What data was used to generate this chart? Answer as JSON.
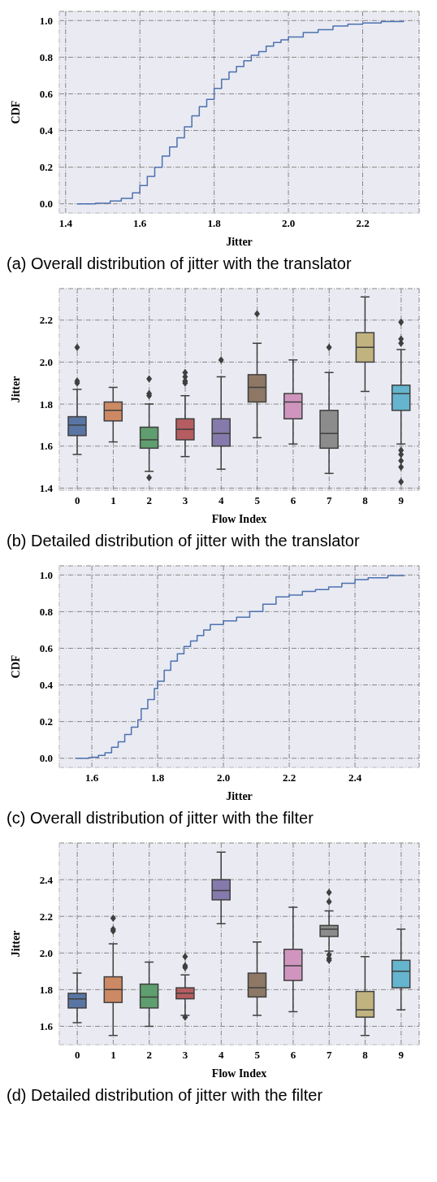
{
  "chart_data": [
    {
      "type": "step",
      "xlabel": "Jitter",
      "ylabel": "CDF",
      "annotations": [
        "(a) Overall distribution of jitter with the translator"
      ],
      "color": "#4c72b0",
      "grid": true,
      "x": [
        1.43,
        1.48,
        1.52,
        1.55,
        1.58,
        1.6,
        1.62,
        1.64,
        1.66,
        1.68,
        1.7,
        1.72,
        1.74,
        1.76,
        1.78,
        1.8,
        1.82,
        1.84,
        1.86,
        1.88,
        1.9,
        1.92,
        1.94,
        1.96,
        1.98,
        2.0,
        2.04,
        2.08,
        2.12,
        2.16,
        2.2,
        2.25,
        2.31
      ],
      "values": [
        0,
        0.003,
        0.015,
        0.03,
        0.06,
        0.1,
        0.15,
        0.2,
        0.26,
        0.31,
        0.36,
        0.42,
        0.48,
        0.53,
        0.57,
        0.63,
        0.68,
        0.72,
        0.75,
        0.78,
        0.81,
        0.83,
        0.86,
        0.88,
        0.895,
        0.91,
        0.935,
        0.95,
        0.97,
        0.98,
        0.987,
        0.995,
        1.0
      ],
      "xlim": [
        1.383,
        2.352
      ],
      "xticks": [
        1.4,
        1.6,
        1.8,
        {
          "value": 2,
          "label": "2.0"
        },
        2.2
      ],
      "ylim": [
        -0.05,
        1.05
      ],
      "yticks": [
        {
          "value": 0,
          "label": "0.0"
        },
        0.2,
        0.4,
        0.6,
        0.8,
        {
          "value": 1,
          "label": "1.0"
        }
      ]
    },
    {
      "type": "box",
      "xlabel": "Flow Index",
      "ylabel": "Jitter",
      "annotations": [
        "(b) Detailed distribution of jitter with the translator"
      ],
      "grid": true,
      "categories": [
        "0",
        "1",
        "2",
        "3",
        "4",
        "5",
        "6",
        "7",
        "8",
        "9"
      ],
      "colors": [
        "#5975a4",
        "#cc8963",
        "#5f9e6e",
        "#b55d60",
        "#857aab",
        "#8d7866",
        "#d095bf",
        "#8c8c8c",
        "#c1b37f",
        "#64b5cd"
      ],
      "boxes": [
        {
          "low": 1.56,
          "q1": 1.65,
          "median": 1.7,
          "q3": 1.74,
          "high": 1.87,
          "outliers": [
            2.07,
            1.9,
            1.91
          ]
        },
        {
          "low": 1.62,
          "q1": 1.72,
          "median": 1.77,
          "q3": 1.81,
          "high": 1.88
        },
        {
          "low": 1.48,
          "q1": 1.59,
          "median": 1.63,
          "q3": 1.69,
          "high": 1.8,
          "outliers": [
            1.92,
            1.84,
            1.85,
            1.45
          ]
        },
        {
          "low": 1.55,
          "q1": 1.63,
          "median": 1.68,
          "q3": 1.73,
          "high": 1.84,
          "outliers": [
            1.95,
            1.93,
            1.91,
            1.9
          ]
        },
        {
          "low": 1.49,
          "q1": 1.6,
          "median": 1.66,
          "q3": 1.73,
          "high": 1.93,
          "outliers": [
            2.01
          ]
        },
        {
          "low": 1.64,
          "q1": 1.81,
          "median": 1.88,
          "q3": 1.94,
          "high": 2.09,
          "outliers": [
            2.23
          ]
        },
        {
          "low": 1.61,
          "q1": 1.73,
          "median": 1.81,
          "q3": 1.85,
          "high": 2.01
        },
        {
          "low": 1.47,
          "q1": 1.59,
          "median": 1.66,
          "q3": 1.77,
          "high": 1.95,
          "outliers": [
            2.07
          ]
        },
        {
          "low": 1.86,
          "q1": 2.0,
          "median": 2.07,
          "q3": 2.14,
          "high": 2.31
        },
        {
          "low": 1.61,
          "q1": 1.77,
          "median": 1.85,
          "q3": 1.89,
          "high": 2.06,
          "outliers": [
            2.19,
            2.11,
            2.09,
            1.58,
            1.56,
            1.53,
            1.5,
            1.43
          ]
        }
      ],
      "ylim": [
        1.39,
        2.35
      ],
      "yticks": [
        1.4,
        1.6,
        1.8,
        {
          "value": 2,
          "label": "2.0"
        },
        2.2
      ]
    },
    {
      "type": "step",
      "xlabel": "Jitter",
      "ylabel": "CDF",
      "annotations": [
        "(c) Overall distribution of jitter with the filter"
      ],
      "color": "#4c72b0",
      "grid": true,
      "x": [
        1.55,
        1.59,
        1.6,
        1.62,
        1.64,
        1.66,
        1.68,
        1.7,
        1.72,
        1.74,
        1.75,
        1.77,
        1.79,
        1.8,
        1.82,
        1.84,
        1.86,
        1.88,
        1.9,
        1.92,
        1.94,
        1.96,
        2.0,
        2.04,
        2.08,
        2.12,
        2.16,
        2.2,
        2.24,
        2.28,
        2.32,
        2.36,
        2.4,
        2.44,
        2.5,
        2.55
      ],
      "values": [
        0,
        0.003,
        0.005,
        0.015,
        0.03,
        0.06,
        0.09,
        0.13,
        0.17,
        0.21,
        0.27,
        0.32,
        0.38,
        0.42,
        0.48,
        0.53,
        0.57,
        0.61,
        0.64,
        0.67,
        0.7,
        0.73,
        0.75,
        0.77,
        0.8,
        0.84,
        0.88,
        0.89,
        0.91,
        0.92,
        0.935,
        0.955,
        0.975,
        0.985,
        0.997,
        1.0
      ],
      "xlim": [
        1.501,
        2.595
      ],
      "xticks": [
        1.6,
        1.8,
        {
          "value": 2,
          "label": "2.0"
        },
        2.2,
        2.4
      ],
      "ylim": [
        -0.05,
        1.05
      ],
      "yticks": [
        {
          "value": 0,
          "label": "0.0"
        },
        0.2,
        0.4,
        0.6,
        0.8,
        {
          "value": 1,
          "label": "1.0"
        }
      ]
    },
    {
      "type": "box",
      "xlabel": "Flow Index",
      "ylabel": "Jitter",
      "annotations": [
        "(d) Detailed distribution of jitter with the filter"
      ],
      "grid": true,
      "categories": [
        "0",
        "1",
        "2",
        "3",
        "4",
        "5",
        "6",
        "7",
        "8",
        "9"
      ],
      "colors": [
        "#5975a4",
        "#cc8963",
        "#5f9e6e",
        "#b55d60",
        "#857aab",
        "#8d7866",
        "#d095bf",
        "#8c8c8c",
        "#c1b37f",
        "#64b5cd"
      ],
      "boxes": [
        {
          "low": 1.62,
          "q1": 1.7,
          "median": 1.75,
          "q3": 1.78,
          "high": 1.89
        },
        {
          "low": 1.55,
          "q1": 1.73,
          "median": 1.8,
          "q3": 1.87,
          "high": 2.05,
          "outliers": [
            2.19,
            2.13,
            2.12
          ]
        },
        {
          "low": 1.6,
          "q1": 1.7,
          "median": 1.76,
          "q3": 1.83,
          "high": 1.95
        },
        {
          "low": 1.66,
          "q1": 1.75,
          "median": 1.78,
          "q3": 1.81,
          "high": 1.88,
          "outliers": [
            1.98,
            1.93,
            1.92,
            1.65
          ]
        },
        {
          "low": 2.16,
          "q1": 2.29,
          "median": 2.34,
          "q3": 2.4,
          "high": 2.55
        },
        {
          "low": 1.66,
          "q1": 1.76,
          "median": 1.81,
          "q3": 1.89,
          "high": 2.06
        },
        {
          "low": 1.68,
          "q1": 1.85,
          "median": 1.93,
          "q3": 2.02,
          "high": 2.25
        },
        {
          "low": 2.01,
          "q1": 2.09,
          "median": 2.13,
          "q3": 2.15,
          "high": 2.23,
          "outliers": [
            2.33,
            2.28,
            1.99,
            1.97,
            1.96
          ]
        },
        {
          "low": 1.55,
          "q1": 1.65,
          "median": 1.69,
          "q3": 1.79,
          "high": 1.98
        },
        {
          "low": 1.69,
          "q1": 1.81,
          "median": 1.9,
          "q3": 1.96,
          "high": 2.13
        }
      ],
      "ylim": [
        1.5,
        2.6
      ],
      "yticks": [
        1.6,
        1.8,
        {
          "value": 2,
          "label": "2.0"
        },
        2.2,
        2.4
      ]
    }
  ]
}
